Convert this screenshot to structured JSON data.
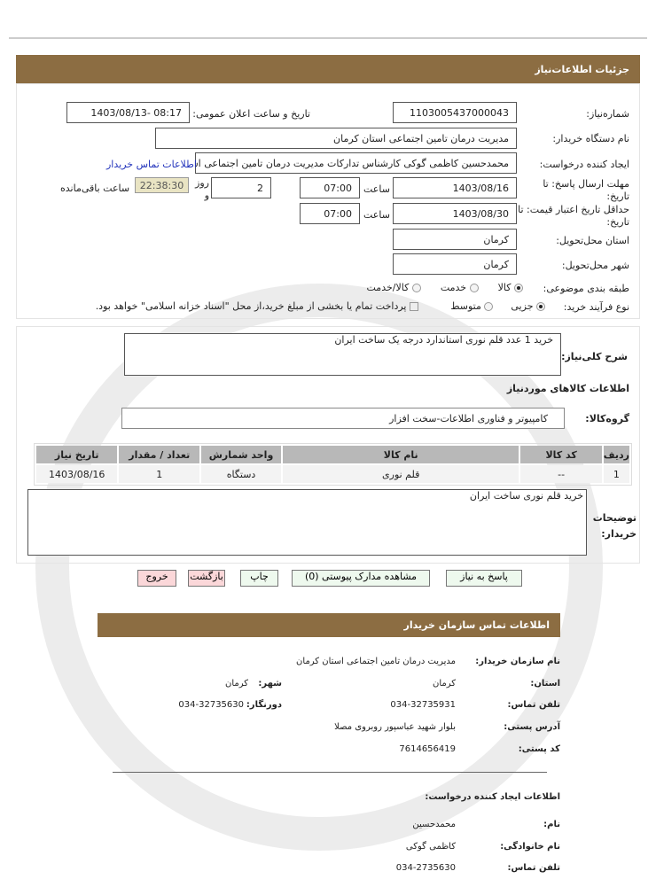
{
  "header": {
    "title": "جزئیات اطلاعات‌نیاز"
  },
  "form": {
    "need_number_label": "شماره‌نیاز:",
    "need_number": "1103005437000043",
    "announce_label": "تاریخ و ساعت اعلان عمومی:",
    "announce_value": "1403/08/13- 08:17",
    "buyer_org_label": "نام دستگاه خریدار:",
    "buyer_org": "مدیریت درمان تامین اجتماعی استان کرمان",
    "creator_label": "ایجاد کننده درخواست:",
    "creator": "محمدحسین کاظمی گوکی کارشناس تدارکات مدیریت درمان تامین اجتماعی استان کرمان",
    "contact_link": "اطلاعات تماس خریدار",
    "deadline_label": "مهلت ارسال پاسخ: تا تاریخ:",
    "deadline_date": "1403/08/16",
    "time_label": "ساعت",
    "deadline_time": "07:00",
    "days_value": "2",
    "days_label": "روز و",
    "remaining_time": "22:38:30",
    "remaining_label": "ساعت باقی‌مانده",
    "validity_label": "حداقل تاریخ اعتبار قیمت: تا تاریخ:",
    "validity_date": "1403/08/30",
    "validity_time": "07:00",
    "province_label": "استان محل‌تحویل:",
    "province": "کرمان",
    "city_label": "شهر محل‌تحویل:",
    "city": "کرمان",
    "category_label": "طبقه بندی موضوعی:",
    "category_options": [
      "کالا",
      "خدمت",
      "کالا/خدمت"
    ],
    "category_selected": "کالا",
    "process_label": "نوع فرآیند خرید:",
    "process_options": [
      "جزیی",
      "متوسط"
    ],
    "process_selected": "جزیی",
    "payment_note": "پرداخت تمام یا بخشی از مبلغ خرید،از محل \"اسناد خزانه اسلامی\" خواهد بود."
  },
  "details": {
    "summary_label": "شرح کلی‌نیاز:",
    "summary": "خرید 1 عدد قلم نوری استاندارد درجه یک ساخت ایران",
    "goods_title": "اطلاعات کالاهای موردنیاز",
    "group_label": "گروه‌کالا:",
    "group": "کامپیوتر و فناوری اطلاعات-سخت افزار",
    "table": {
      "headers": [
        "ردیف",
        "کد کالا",
        "نام کالا",
        "واحد شمارش",
        "تعداد / مقدار",
        "تاریخ نیاز"
      ],
      "rows": [
        [
          "1",
          "--",
          "قلم نوری",
          "دستگاه",
          "1",
          "1403/08/16"
        ]
      ]
    },
    "buyer_notes_label": "توضیحات خریدار:",
    "buyer_notes": "خرید قلم نوری ساخت ایران"
  },
  "buttons": {
    "reply": "پاسخ به نیاز",
    "attachments": "مشاهده مدارک پیوستی (0)",
    "print": "چاپ",
    "back": "بازگشت",
    "exit": "خروج"
  },
  "contact": {
    "title": "اطلاعات تماس سازمان خریدار",
    "org_label": "نام سازمان خریدار:",
    "org": "مدیریت درمان تامین اجتماعی استان کرمان",
    "province_label": "استان:",
    "province": "کرمان",
    "city_label": "شهر:",
    "city": "کرمان",
    "phone_label": "تلفن تماس:",
    "phone": "034-32735931",
    "fax_label": "دورنگار:",
    "fax": "034-32735630",
    "address_label": "آدرس پستی:",
    "address": "بلوار شهید عباسپور روبروی مصلا",
    "postal_label": "کد پستی:",
    "postal": "7614656419",
    "creator_title": "اطلاعات ایجاد کننده درخواست:",
    "name_label": "نام:",
    "name": "محمدحسین",
    "family_label": "نام خانوادگی:",
    "family": "کاظمی گوکی",
    "cphone_label": "تلفن تماس:",
    "cphone": "034-2735630"
  }
}
